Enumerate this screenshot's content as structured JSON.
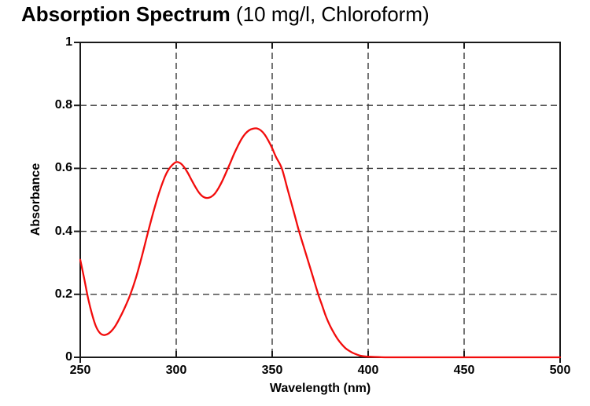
{
  "title": {
    "main": "Absorption Spectrum",
    "suffix": " (10 mg/l, Chloroform)"
  },
  "colors": {
    "curve": "#f20c0c",
    "grid": "#3a3a3a",
    "axis": "#1a1a1a",
    "text": "#000000",
    "background": "#ffffff"
  },
  "chart_data": {
    "type": "line",
    "title": "Absorption Spectrum (10 mg/l, Chloroform)",
    "xlabel": "Wavelength (nm)",
    "ylabel": "Absorbance",
    "xlim": [
      250,
      500
    ],
    "ylim": [
      0,
      1
    ],
    "grid": "dashed",
    "legend": "none",
    "x_ticks": [
      {
        "v": 250,
        "label": "250"
      },
      {
        "v": 300,
        "label": "300"
      },
      {
        "v": 350,
        "label": "350"
      },
      {
        "v": 400,
        "label": "400"
      },
      {
        "v": 450,
        "label": "450"
      },
      {
        "v": 500,
        "label": "500"
      }
    ],
    "y_ticks": [
      {
        "v": 0,
        "label": "0"
      },
      {
        "v": 0.2,
        "label": "0.2"
      },
      {
        "v": 0.4,
        "label": "0.4"
      },
      {
        "v": 0.6,
        "label": "0.6"
      },
      {
        "v": 0.8,
        "label": "0.8"
      },
      {
        "v": 1,
        "label": "1"
      }
    ],
    "key_features": {
      "start": {
        "nm": 250,
        "absorbance": 0.31
      },
      "local_min": {
        "nm": 262,
        "absorbance": 0.07
      },
      "peak_1": {
        "nm": 300,
        "absorbance": 0.62
      },
      "valley": {
        "nm": 316,
        "absorbance": 0.51
      },
      "peak_2": {
        "nm": 342,
        "absorbance": 0.73
      },
      "zero_beyond_nm": 400
    },
    "series": [
      {
        "name": "absorbance",
        "color": "#f20c0c",
        "points": [
          [
            250,
            0.31
          ],
          [
            252,
            0.252
          ],
          [
            254,
            0.19
          ],
          [
            256,
            0.14
          ],
          [
            258,
            0.101
          ],
          [
            260,
            0.079
          ],
          [
            262,
            0.071
          ],
          [
            264,
            0.073
          ],
          [
            266,
            0.082
          ],
          [
            268,
            0.097
          ],
          [
            270,
            0.118
          ],
          [
            273,
            0.155
          ],
          [
            276,
            0.198
          ],
          [
            279,
            0.252
          ],
          [
            282,
            0.318
          ],
          [
            285,
            0.39
          ],
          [
            288,
            0.459
          ],
          [
            291,
            0.521
          ],
          [
            294,
            0.572
          ],
          [
            296,
            0.596
          ],
          [
            298,
            0.611
          ],
          [
            300,
            0.62
          ],
          [
            302,
            0.617
          ],
          [
            304,
            0.605
          ],
          [
            306,
            0.586
          ],
          [
            308,
            0.563
          ],
          [
            310,
            0.541
          ],
          [
            312,
            0.522
          ],
          [
            314,
            0.51
          ],
          [
            316,
            0.506
          ],
          [
            318,
            0.509
          ],
          [
            320,
            0.519
          ],
          [
            322,
            0.537
          ],
          [
            324,
            0.56
          ],
          [
            326,
            0.587
          ],
          [
            328,
            0.615
          ],
          [
            330,
            0.644
          ],
          [
            332,
            0.67
          ],
          [
            334,
            0.693
          ],
          [
            336,
            0.71
          ],
          [
            338,
            0.721
          ],
          [
            340,
            0.726
          ],
          [
            342,
            0.727
          ],
          [
            344,
            0.721
          ],
          [
            346,
            0.708
          ],
          [
            348,
            0.688
          ],
          [
            350,
            0.664
          ],
          [
            352,
            0.636
          ],
          [
            355,
            0.6
          ],
          [
            358,
            0.534
          ],
          [
            360,
            0.49
          ],
          [
            362,
            0.445
          ],
          [
            364,
            0.4
          ],
          [
            367,
            0.34
          ],
          [
            369,
            0.3
          ],
          [
            371,
            0.26
          ],
          [
            374,
            0.2
          ],
          [
            376,
            0.165
          ],
          [
            378,
            0.13
          ],
          [
            380,
            0.102
          ],
          [
            382,
            0.079
          ],
          [
            384,
            0.059
          ],
          [
            386,
            0.043
          ],
          [
            388,
            0.03
          ],
          [
            390,
            0.021
          ],
          [
            392,
            0.014
          ],
          [
            394,
            0.009
          ],
          [
            396,
            0.005
          ],
          [
            398,
            0.003
          ],
          [
            400,
            0.002
          ],
          [
            405,
            0.001
          ],
          [
            410,
            0.0
          ],
          [
            430,
            0.0
          ],
          [
            450,
            0.0
          ],
          [
            475,
            0.0
          ],
          [
            500,
            0.0
          ]
        ]
      }
    ]
  }
}
